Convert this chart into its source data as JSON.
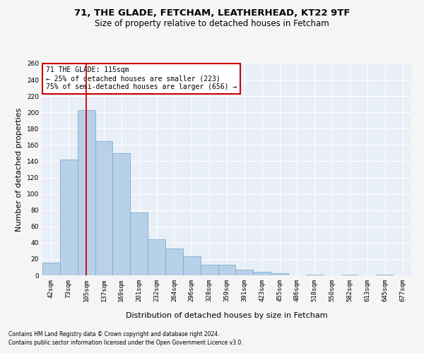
{
  "title1": "71, THE GLADE, FETCHAM, LEATHERHEAD, KT22 9TF",
  "title2": "Size of property relative to detached houses in Fetcham",
  "xlabel": "Distribution of detached houses by size in Fetcham",
  "ylabel": "Number of detached properties",
  "categories": [
    "42sqm",
    "73sqm",
    "105sqm",
    "137sqm",
    "169sqm",
    "201sqm",
    "232sqm",
    "264sqm",
    "296sqm",
    "328sqm",
    "359sqm",
    "391sqm",
    "423sqm",
    "455sqm",
    "486sqm",
    "518sqm",
    "550sqm",
    "582sqm",
    "613sqm",
    "645sqm",
    "677sqm"
  ],
  "values": [
    16,
    142,
    203,
    165,
    150,
    77,
    44,
    33,
    23,
    13,
    13,
    7,
    4,
    3,
    0,
    1,
    0,
    1,
    0,
    1,
    0
  ],
  "bar_color": "#b8d0e8",
  "bar_edge_color": "#7aadd0",
  "vline_x": 2,
  "vline_color": "#cc0000",
  "annotation_text": "71 THE GLADE: 115sqm\n← 25% of detached houses are smaller (223)\n75% of semi-detached houses are larger (656) →",
  "annotation_box_color": "#ffffff",
  "annotation_box_edge": "#cc0000",
  "footnote1": "Contains HM Land Registry data © Crown copyright and database right 2024.",
  "footnote2": "Contains public sector information licensed under the Open Government Licence v3.0.",
  "ylim": [
    0,
    260
  ],
  "background_color": "#e8eff7",
  "grid_color": "#ffffff",
  "fig_background": "#f5f5f5",
  "title1_fontsize": 9.5,
  "title2_fontsize": 8.5,
  "tick_fontsize": 6.5,
  "ylabel_fontsize": 8,
  "xlabel_fontsize": 8,
  "annotation_fontsize": 7,
  "footnote_fontsize": 5.5
}
